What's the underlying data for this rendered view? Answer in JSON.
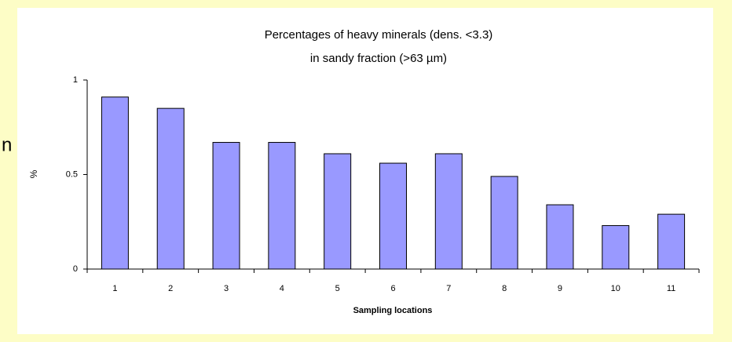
{
  "background_text": "n",
  "chart_data": {
    "type": "bar",
    "title": [
      "Percentages of heavy minerals (dens. <3.3)",
      "in sandy fraction (>63 µm)"
    ],
    "x_label": "Sampling locations",
    "y_label": "%",
    "categories": [
      "1",
      "2",
      "3",
      "4",
      "5",
      "6",
      "7",
      "8",
      "9",
      "10",
      "11"
    ],
    "values": [
      0.91,
      0.85,
      0.67,
      0.67,
      0.61,
      0.56,
      0.61,
      0.49,
      0.34,
      0.23,
      0.29
    ],
    "color": "#9999ff",
    "ylim": [
      0,
      1
    ],
    "yticks": [
      0,
      0.5,
      1
    ],
    "grid": false
  }
}
